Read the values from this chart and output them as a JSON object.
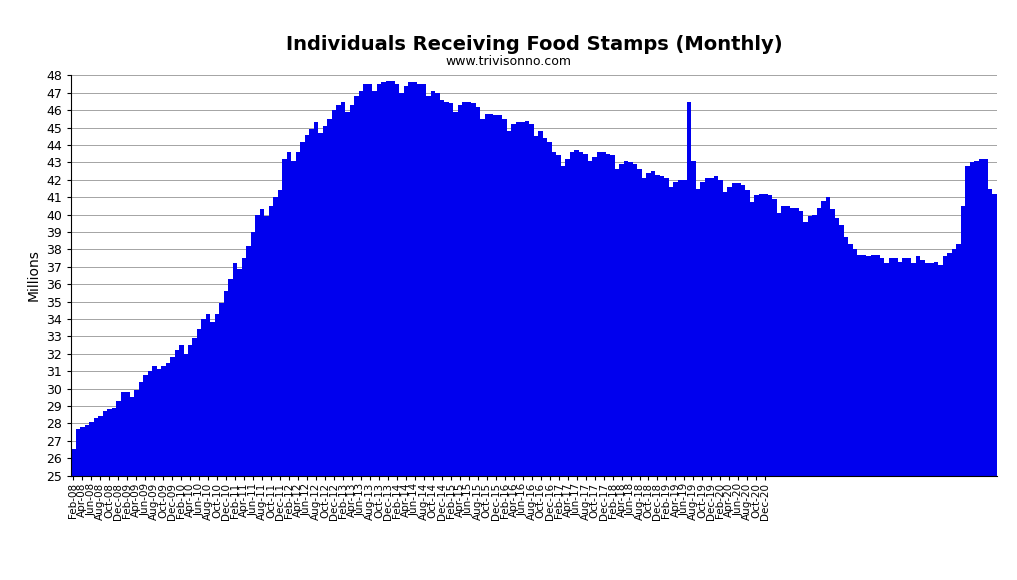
{
  "title": "Individuals Receiving Food Stamps (Monthly)",
  "subtitle": "www.trivisonno.com",
  "ylabel": "Millions",
  "bar_color": "#0000EE",
  "background_color": "#FFFFFF",
  "ylim_min": 25,
  "ylim_max": 48,
  "ytick_step": 1,
  "values": [
    26.5,
    27.7,
    27.8,
    27.9,
    28.1,
    28.3,
    28.4,
    28.7,
    28.8,
    28.9,
    29.3,
    29.8,
    29.8,
    29.5,
    29.9,
    30.4,
    30.8,
    31.0,
    31.3,
    31.1,
    31.3,
    31.5,
    31.8,
    32.2,
    32.5,
    32.0,
    32.5,
    32.9,
    33.4,
    34.0,
    34.3,
    33.8,
    34.3,
    34.9,
    35.6,
    36.3,
    37.2,
    36.9,
    37.5,
    38.2,
    39.0,
    40.0,
    40.3,
    39.9,
    40.5,
    41.0,
    41.4,
    43.2,
    43.6,
    43.1,
    43.6,
    44.2,
    44.6,
    44.9,
    45.3,
    44.7,
    45.1,
    45.5,
    46.0,
    46.3,
    46.5,
    45.9,
    46.3,
    46.8,
    47.1,
    47.5,
    47.5,
    47.1,
    47.5,
    47.6,
    47.7,
    47.7,
    47.5,
    47.0,
    47.4,
    47.6,
    47.6,
    47.5,
    47.5,
    46.8,
    47.1,
    47.0,
    46.6,
    46.5,
    46.4,
    45.9,
    46.3,
    46.5,
    46.5,
    46.4,
    46.2,
    45.5,
    45.8,
    45.8,
    45.7,
    45.7,
    45.5,
    44.8,
    45.2,
    45.3,
    45.3,
    45.4,
    45.2,
    44.5,
    44.8,
    44.4,
    44.2,
    43.6,
    43.4,
    42.8,
    43.2,
    43.6,
    43.7,
    43.6,
    43.5,
    43.1,
    43.3,
    43.6,
    43.6,
    43.5,
    43.4,
    42.6,
    42.9,
    43.1,
    43.0,
    42.9,
    42.6,
    42.1,
    42.4,
    42.5,
    42.3,
    42.2,
    42.1,
    41.6,
    41.9,
    42.0,
    42.0,
    46.5,
    43.1,
    41.5,
    41.9,
    42.1,
    42.1,
    42.2,
    42.0,
    41.3,
    41.6,
    41.8,
    41.8,
    41.7,
    41.4,
    40.7,
    41.1,
    41.2,
    41.2,
    41.1,
    40.9,
    40.1,
    40.5,
    40.5,
    40.4,
    40.4,
    40.2,
    39.6,
    39.9,
    40.0,
    40.4,
    40.8,
    41.0,
    40.3,
    39.8,
    39.4,
    38.7,
    38.3,
    38.0,
    37.7,
    37.7,
    37.6,
    37.7,
    37.7,
    37.5,
    37.2,
    37.5,
    37.5,
    37.3,
    37.5,
    37.5,
    37.2,
    37.6,
    37.4,
    37.2,
    37.2,
    37.3,
    37.1,
    37.6,
    37.8,
    38.0,
    38.3,
    40.5,
    42.8,
    43.0,
    43.1,
    43.2,
    43.2,
    41.5,
    41.2
  ],
  "tick_labels": [
    "Feb-08",
    "Apr-08",
    "Jun-08",
    "Aug-08",
    "Oct-08",
    "Dec-08",
    "Feb-09",
    "Apr-09",
    "Jun-09",
    "Aug-09",
    "Oct-09",
    "Dec-09",
    "Feb-10",
    "Apr-10",
    "Jun-10",
    "Aug-10",
    "Oct-10",
    "Dec-10",
    "Feb-11",
    "Apr-11",
    "Jun-11",
    "Aug-11",
    "Oct-11",
    "Dec-11",
    "Feb-12",
    "Apr-12",
    "Jun-12",
    "Aug-12",
    "Oct-12",
    "Dec-12",
    "Feb-13",
    "Apr-13",
    "Jun-13",
    "Aug-13",
    "Oct-13",
    "Dec-13",
    "Feb-14",
    "Apr-14",
    "Jun-14",
    "Aug-14",
    "Oct-14",
    "Dec-14",
    "Feb-15",
    "Apr-15",
    "Jun-15",
    "Aug-15",
    "Oct-15",
    "Dec-15",
    "Feb-16",
    "Apr-16",
    "Jun-16",
    "Aug-16",
    "Oct-16",
    "Dec-16",
    "Feb-17",
    "Apr-17",
    "Jun-17",
    "Aug-17",
    "Oct-17",
    "Dec-17",
    "Feb-18",
    "Apr-18",
    "Jun-18",
    "Aug-18",
    "Oct-18",
    "Dec-18",
    "Feb-19",
    "Apr-19",
    "Jun-19",
    "Aug-19",
    "Oct-19",
    "Dec-19",
    "Feb-20",
    "Apr-20",
    "Jun-20",
    "Aug-20",
    "Oct-20",
    "Dec-20"
  ]
}
